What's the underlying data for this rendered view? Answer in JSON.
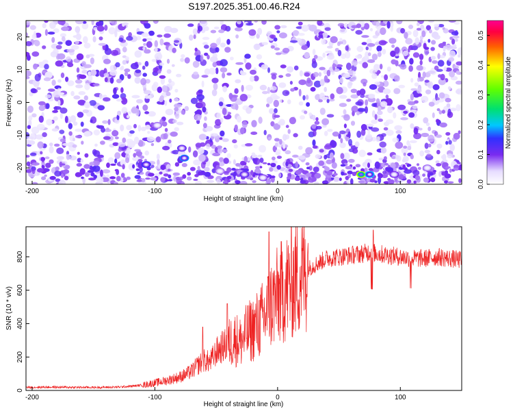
{
  "title": "S197.2025.351.00.46.R24",
  "chart_data": [
    {
      "type": "heatmap",
      "name": "spectrogram",
      "xlabel": "Height of straight line (km)",
      "ylabel": "Frequency (Hz)",
      "xlim": [
        -205,
        150
      ],
      "ylim": [
        -25,
        25
      ],
      "xticks": [
        -200,
        -100,
        0,
        100
      ],
      "yticks": [
        -20,
        -10,
        0,
        10,
        20
      ],
      "colorbar": {
        "label": "Normalized spectral amplitude",
        "range": [
          0,
          0.55
        ],
        "ticks": [
          0.0,
          0.1,
          0.2,
          0.3,
          0.4,
          0.5
        ],
        "tick_labels": [
          "0.0",
          "0.1",
          "0.2",
          "0.3",
          "0.4",
          "0.5"
        ],
        "colormap": "white-purple-blue-cyan-green-yellow-red-magenta"
      },
      "notable_features": [
        {
          "x": -107,
          "y": -19,
          "value": 0.15
        },
        {
          "x": -76,
          "y": -17,
          "value": 0.18
        },
        {
          "x": -78,
          "y": -14,
          "value": 0.12
        },
        {
          "x": -98,
          "y": -7,
          "value": 0.08
        },
        {
          "x": -27,
          "y": -22,
          "value": 0.12
        },
        {
          "x": -12,
          "y": -23,
          "value": 0.09
        },
        {
          "x": 68,
          "y": -22,
          "value": 0.38
        },
        {
          "x": 75,
          "y": -22,
          "value": 0.2
        },
        {
          "x": 95,
          "y": -22,
          "value": 0.1
        },
        {
          "x": 122,
          "y": -20,
          "value": 0.08
        },
        {
          "x": -47,
          "y": -21,
          "value": 0.08
        }
      ]
    },
    {
      "type": "line",
      "name": "snr",
      "xlabel": "Height of straight line (km)",
      "ylabel": "SNR (10 * v/v)",
      "xlim": [
        -205,
        150
      ],
      "ylim": [
        0,
        980
      ],
      "xticks": [
        -200,
        -100,
        0,
        100
      ],
      "yticks": [
        0,
        200,
        400,
        600,
        800
      ],
      "color": "#ee2222",
      "series": [
        {
          "name": "SNR",
          "x": [
            -205,
            -190,
            -170,
            -150,
            -130,
            -120,
            -110,
            -100,
            -90,
            -80,
            -75,
            -70,
            -65,
            -60,
            -55,
            -50,
            -45,
            -40,
            -35,
            -30,
            -25,
            -20,
            -15,
            -10,
            -5,
            0,
            5,
            10,
            15,
            20,
            25,
            30,
            40,
            50,
            60,
            70,
            75,
            80,
            90,
            100,
            110,
            120,
            130,
            140,
            150
          ],
          "y": [
            18,
            20,
            19,
            18,
            20,
            25,
            32,
            45,
            60,
            80,
            95,
            115,
            150,
            180,
            170,
            230,
            260,
            280,
            310,
            290,
            340,
            370,
            400,
            450,
            520,
            560,
            600,
            640,
            670,
            710,
            730,
            750,
            790,
            800,
            810,
            820,
            830,
            820,
            810,
            800,
            790,
            790,
            800,
            790,
            780
          ]
        }
      ],
      "annotations": [
        {
          "x": -61,
          "y": 380,
          "label": ""
        },
        {
          "x": -41,
          "y": 520,
          "label": ""
        },
        {
          "x": -7,
          "y": 950,
          "label": ""
        },
        {
          "x": 78,
          "y": 960,
          "label": ""
        }
      ]
    }
  ]
}
